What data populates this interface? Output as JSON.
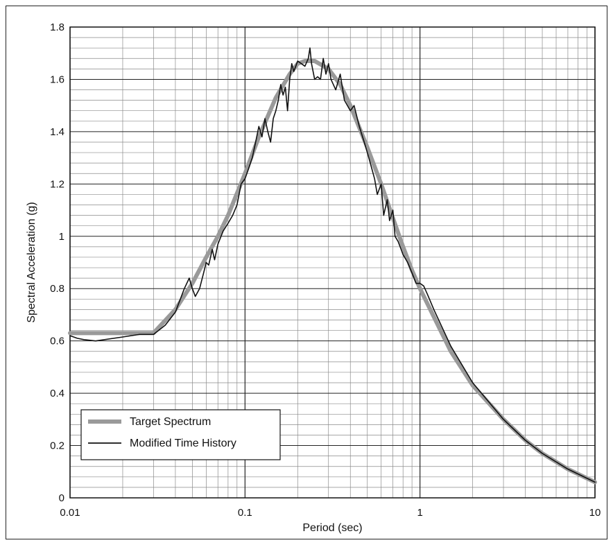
{
  "chart_data": {
    "type": "line",
    "xscale": "log",
    "xlabel": "Period (sec)",
    "ylabel": "Spectral Acceleration (g)",
    "xlim": [
      0.01,
      10
    ],
    "ylim": [
      0,
      1.8
    ],
    "x_tick_labels": [
      "0.01",
      "0.1",
      "1",
      "10"
    ],
    "y_tick_labels": [
      "0",
      "0.2",
      "0.4",
      "0.6",
      "0.8",
      "1",
      "1.2",
      "1.4",
      "1.6",
      "1.8"
    ],
    "grid": true,
    "legend_position": "bottom-left",
    "series": [
      {
        "name": "Target Spectrum",
        "style": "thick-gray",
        "color": "#9a9a9a",
        "points": [
          [
            0.01,
            0.63
          ],
          [
            0.02,
            0.63
          ],
          [
            0.03,
            0.63
          ],
          [
            0.04,
            0.72
          ],
          [
            0.05,
            0.82
          ],
          [
            0.06,
            0.92
          ],
          [
            0.07,
            1.0
          ],
          [
            0.08,
            1.08
          ],
          [
            0.1,
            1.24
          ],
          [
            0.12,
            1.38
          ],
          [
            0.15,
            1.53
          ],
          [
            0.18,
            1.62
          ],
          [
            0.2,
            1.66
          ],
          [
            0.22,
            1.67
          ],
          [
            0.25,
            1.67
          ],
          [
            0.3,
            1.64
          ],
          [
            0.35,
            1.58
          ],
          [
            0.4,
            1.5
          ],
          [
            0.5,
            1.34
          ],
          [
            0.6,
            1.2
          ],
          [
            0.7,
            1.07
          ],
          [
            0.8,
            0.96
          ],
          [
            0.9,
            0.87
          ],
          [
            1.0,
            0.8
          ],
          [
            1.5,
            0.56
          ],
          [
            2.0,
            0.43
          ],
          [
            3.0,
            0.3
          ],
          [
            4.0,
            0.22
          ],
          [
            5.0,
            0.17
          ],
          [
            7.0,
            0.11
          ],
          [
            10.0,
            0.06
          ]
        ]
      },
      {
        "name": "Modified Time History",
        "style": "thin-black",
        "color": "#111111",
        "points": [
          [
            0.01,
            0.62
          ],
          [
            0.011,
            0.61
          ],
          [
            0.012,
            0.605
          ],
          [
            0.014,
            0.6
          ],
          [
            0.02,
            0.615
          ],
          [
            0.025,
            0.625
          ],
          [
            0.03,
            0.625
          ],
          [
            0.035,
            0.66
          ],
          [
            0.04,
            0.71
          ],
          [
            0.045,
            0.8
          ],
          [
            0.048,
            0.84
          ],
          [
            0.05,
            0.8
          ],
          [
            0.052,
            0.77
          ],
          [
            0.055,
            0.8
          ],
          [
            0.058,
            0.86
          ],
          [
            0.06,
            0.9
          ],
          [
            0.062,
            0.89
          ],
          [
            0.065,
            0.95
          ],
          [
            0.067,
            0.91
          ],
          [
            0.07,
            0.97
          ],
          [
            0.075,
            1.02
          ],
          [
            0.08,
            1.05
          ],
          [
            0.085,
            1.08
          ],
          [
            0.09,
            1.12
          ],
          [
            0.095,
            1.2
          ],
          [
            0.1,
            1.22
          ],
          [
            0.105,
            1.26
          ],
          [
            0.11,
            1.3
          ],
          [
            0.115,
            1.36
          ],
          [
            0.12,
            1.42
          ],
          [
            0.125,
            1.38
          ],
          [
            0.13,
            1.45
          ],
          [
            0.135,
            1.4
          ],
          [
            0.14,
            1.36
          ],
          [
            0.145,
            1.45
          ],
          [
            0.15,
            1.48
          ],
          [
            0.155,
            1.52
          ],
          [
            0.16,
            1.58
          ],
          [
            0.165,
            1.54
          ],
          [
            0.17,
            1.57
          ],
          [
            0.175,
            1.48
          ],
          [
            0.18,
            1.6
          ],
          [
            0.185,
            1.66
          ],
          [
            0.19,
            1.63
          ],
          [
            0.2,
            1.67
          ],
          [
            0.21,
            1.66
          ],
          [
            0.22,
            1.65
          ],
          [
            0.23,
            1.68
          ],
          [
            0.235,
            1.72
          ],
          [
            0.24,
            1.66
          ],
          [
            0.25,
            1.6
          ],
          [
            0.26,
            1.61
          ],
          [
            0.27,
            1.6
          ],
          [
            0.28,
            1.68
          ],
          [
            0.29,
            1.62
          ],
          [
            0.3,
            1.66
          ],
          [
            0.31,
            1.6
          ],
          [
            0.33,
            1.56
          ],
          [
            0.35,
            1.62
          ],
          [
            0.37,
            1.52
          ],
          [
            0.4,
            1.48
          ],
          [
            0.42,
            1.5
          ],
          [
            0.45,
            1.42
          ],
          [
            0.48,
            1.36
          ],
          [
            0.5,
            1.32
          ],
          [
            0.52,
            1.28
          ],
          [
            0.55,
            1.22
          ],
          [
            0.57,
            1.16
          ],
          [
            0.6,
            1.2
          ],
          [
            0.62,
            1.08
          ],
          [
            0.65,
            1.14
          ],
          [
            0.67,
            1.06
          ],
          [
            0.7,
            1.1
          ],
          [
            0.72,
            1.0
          ],
          [
            0.75,
            0.98
          ],
          [
            0.78,
            0.95
          ],
          [
            0.8,
            0.93
          ],
          [
            0.85,
            0.9
          ],
          [
            0.9,
            0.86
          ],
          [
            0.95,
            0.82
          ],
          [
            1.0,
            0.82
          ],
          [
            1.05,
            0.81
          ],
          [
            1.1,
            0.78
          ],
          [
            1.2,
            0.72
          ],
          [
            1.5,
            0.58
          ],
          [
            2.0,
            0.44
          ],
          [
            3.0,
            0.3
          ],
          [
            4.0,
            0.22
          ],
          [
            5.0,
            0.17
          ],
          [
            7.0,
            0.11
          ],
          [
            10.0,
            0.06
          ]
        ]
      }
    ]
  }
}
